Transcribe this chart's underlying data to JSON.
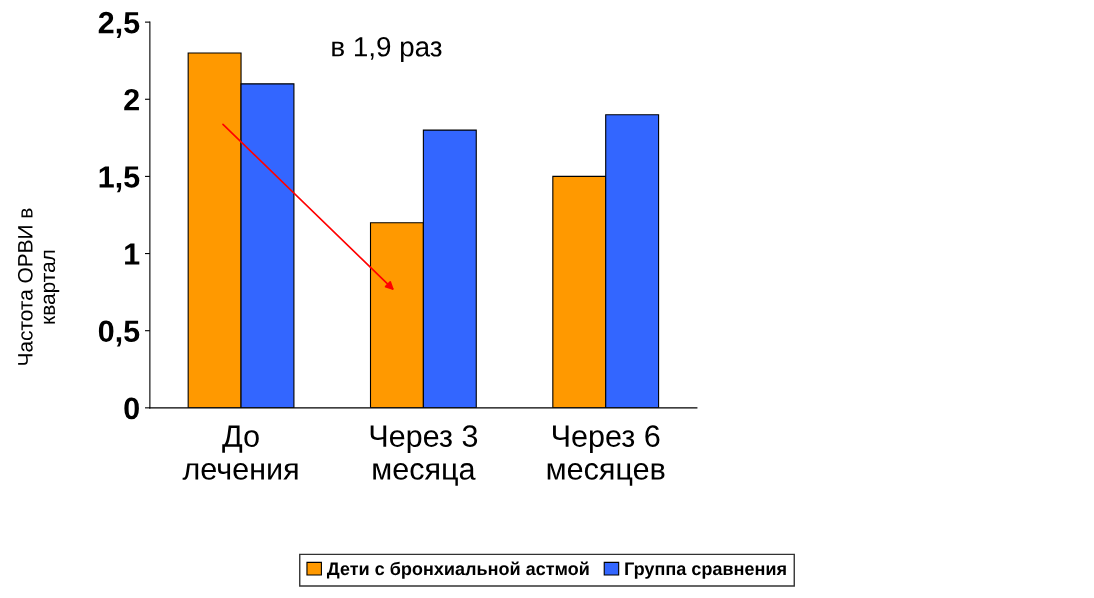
{
  "chart_data": {
    "type": "bar",
    "ylabel": "Частота ОРВИ в\nквартал",
    "categories": [
      "До\nлечения",
      "Через 3\nмесяца",
      "Через 6\nмесяцев"
    ],
    "series": [
      {
        "name": "Дети с бронхиальной астмой",
        "color": "#ff9900",
        "values": [
          2.3,
          1.2,
          1.5
        ]
      },
      {
        "name": "Группа сравнения",
        "color": "#3366ff",
        "values": [
          2.1,
          1.8,
          1.9
        ]
      }
    ],
    "ylim": [
      0,
      2.5
    ],
    "yticks": [
      0,
      {
        "value": 0.5,
        "label": "0,5"
      },
      1,
      {
        "value": 1.5,
        "label": "1,5"
      },
      2,
      {
        "value": 2.5,
        "label": "2,5"
      }
    ],
    "annotations": [
      "в 1,9 раз"
    ],
    "grid": false,
    "legend": "bottom"
  }
}
